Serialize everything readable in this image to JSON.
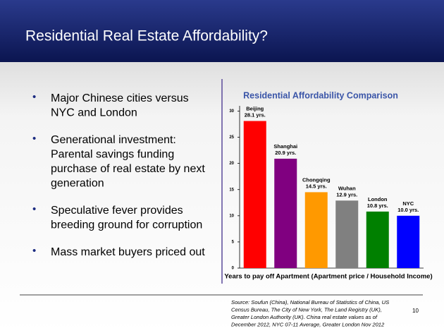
{
  "header": {
    "title": "Residential Real Estate Affordability?"
  },
  "bullets": [
    [
      "Major Chinese cities versus",
      "NYC and London"
    ],
    [
      "Generational investment:",
      "Parental savings funding",
      "purchase of real estate by next",
      "generation"
    ],
    [
      "Speculative fever provides",
      "breeding ground for corruption"
    ],
    [
      "Mass market buyers priced out"
    ]
  ],
  "chart_data": {
    "type": "bar",
    "title": "Residential Affordability Comparison",
    "x_label": "Years to pay off Apartment  (Apartment price / Household Income)",
    "categories": [
      "Beijing",
      "Shanghai",
      "Chongqing",
      "Wuhan",
      "London",
      "NYC"
    ],
    "values": [
      28.1,
      20.9,
      14.5,
      12.9,
      10.8,
      10.0
    ],
    "value_labels": [
      "28.1 yrs.",
      "20.9 yrs.",
      "14.5 yrs.",
      "12.9 yrs.",
      "10.8 yrs.",
      "10.0 yrs."
    ],
    "colors": [
      "#ff0000",
      "#800080",
      "#ff9900",
      "#808080",
      "#008000",
      "#0000ff"
    ],
    "ylim": [
      0,
      31
    ],
    "yticks": [
      0,
      5,
      10,
      15,
      20,
      25,
      30
    ]
  },
  "source": [
    "Source: Soufun (China), National Bureau of Statistics of China, US",
    "Census Bureau, The City of New York, The Land Registry (UK),",
    "Greater London Authority (UK).  China real estate values as of",
    "December 2012, NYC 07-11 Average,  Greater London Nov 2012"
  ],
  "page_number": "10"
}
